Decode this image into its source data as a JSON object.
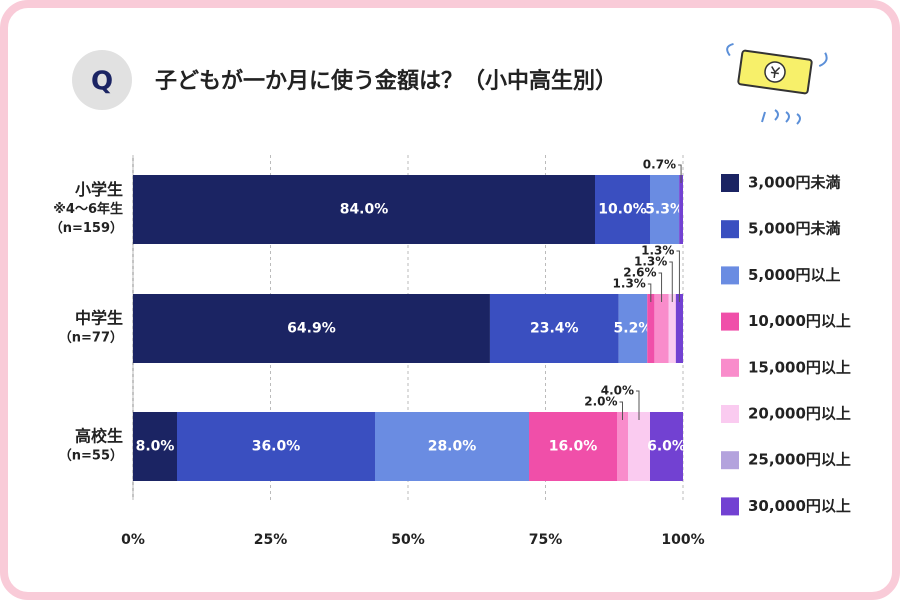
{
  "badge": "Q",
  "chart_data": {
    "type": "stacked_barh",
    "title": "子どもが一か月に使う金額は？（小中高生別）",
    "categories": [
      [
        "小学生",
        "※4〜6年生",
        "（n=159）"
      ],
      [
        "中学生",
        "（n=77）"
      ],
      [
        "高校生",
        "（n=55）"
      ]
    ],
    "series": [
      {
        "name": "3,000円未満",
        "color": "#1b2463",
        "values": [
          84.0,
          64.9,
          8.0
        ],
        "value_labels": [
          "84.0%",
          "64.9%",
          "8.0%"
        ]
      },
      {
        "name": "5,000円未満",
        "color": "#3a4fc0",
        "values": [
          10.0,
          23.4,
          36.0
        ],
        "value_labels": [
          "10.0%",
          "23.4%",
          "36.0%"
        ]
      },
      {
        "name": "5,000円以上",
        "color": "#6a8ce2",
        "values": [
          5.3,
          5.2,
          28.0
        ],
        "value_labels": [
          "5.3%",
          "5.2%",
          "28.0%"
        ]
      },
      {
        "name": "10,000円以上",
        "color": "#f04fa9",
        "values": [
          0,
          1.3,
          16.0
        ],
        "value_labels": [
          null,
          "1.3%",
          "16.0%"
        ]
      },
      {
        "name": "15,000円以上",
        "color": "#f98ccb",
        "values": [
          0,
          2.6,
          2.0
        ],
        "value_labels": [
          null,
          "2.6%",
          "2.0%"
        ]
      },
      {
        "name": "20,000円以上",
        "color": "#facbf0",
        "values": [
          0,
          1.3,
          4.0
        ],
        "value_labels": [
          null,
          "1.3%",
          "4.0%"
        ]
      },
      {
        "name": "25,000円以上",
        "color": "#b3a2dd",
        "values": [
          0,
          0,
          0
        ],
        "value_labels": [
          null,
          null,
          null
        ]
      },
      {
        "name": "30,000円以上",
        "color": "#7241d2",
        "values": [
          0.7,
          1.3,
          6.0
        ],
        "value_labels": [
          "0.7%",
          "1.3%",
          "6.0%"
        ]
      }
    ],
    "xlim": [
      0,
      100
    ],
    "xticks": [
      {
        "value": 0,
        "label": "0%"
      },
      {
        "value": 25,
        "label": "25%"
      },
      {
        "value": 50,
        "label": "50%"
      },
      {
        "value": 75,
        "label": "75%"
      },
      {
        "value": 100,
        "label": "100%"
      }
    ],
    "grid": true,
    "legend": "right"
  }
}
